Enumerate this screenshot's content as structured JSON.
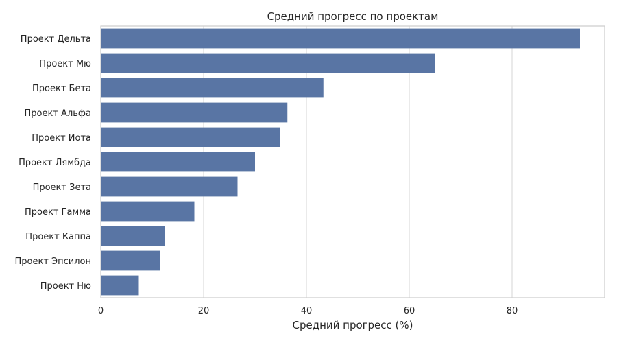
{
  "chart_data": {
    "type": "bar",
    "orientation": "horizontal",
    "title": "Средний прогресс по проектам",
    "xlabel": "Средний прогресс (%)",
    "ylabel": "",
    "xlim": [
      0,
      98
    ],
    "x_ticks": [
      0,
      20,
      40,
      60,
      80
    ],
    "grid": "vertical",
    "bar_color": "#5975a4",
    "categories": [
      "Проект Дельта",
      "Проект Мю",
      "Проект Бета",
      "Проект Альфа",
      "Проект Иота",
      "Проект Лямбда",
      "Проект Зета",
      "Проект Гамма",
      "Проект Каппа",
      "Проект Эпсилон",
      "Проект Ню"
    ],
    "values": [
      93.2,
      65.0,
      43.3,
      36.3,
      34.9,
      30.0,
      26.6,
      18.2,
      12.5,
      11.6,
      7.4
    ]
  }
}
